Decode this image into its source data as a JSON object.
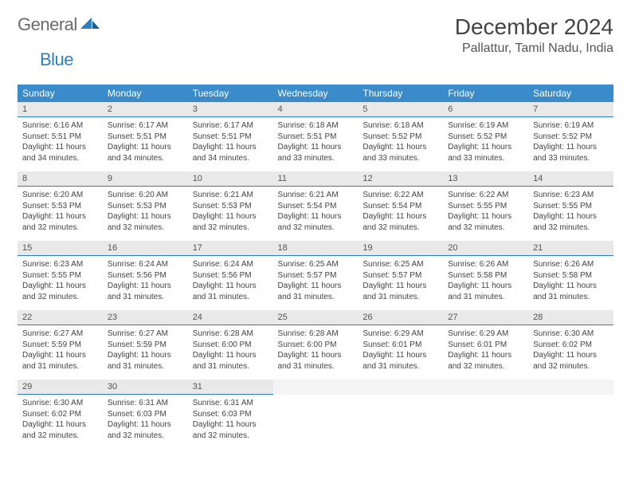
{
  "brand": {
    "name_a": "General",
    "name_b": "Blue"
  },
  "title": "December 2024",
  "location": "Pallattur, Tamil Nadu, India",
  "colors": {
    "header_bg": "#3a8bc9",
    "header_text": "#ffffff",
    "daynum_bg": "#e9e9e9",
    "daynum_border": "#2d7fc1",
    "body_text": "#444444",
    "logo_gray": "#6b6b6b",
    "logo_blue": "#2d7fc1",
    "page_bg": "#ffffff"
  },
  "typography": {
    "month_title_fontsize": 28,
    "location_fontsize": 16,
    "weekday_fontsize": 12,
    "daynum_fontsize": 11,
    "detail_fontsize": 10
  },
  "layout": {
    "columns": 7,
    "rows": 5,
    "cell_width_pct": 14.28
  },
  "weekdays": [
    "Sunday",
    "Monday",
    "Tuesday",
    "Wednesday",
    "Thursday",
    "Friday",
    "Saturday"
  ],
  "weeks": [
    [
      {
        "num": "1",
        "sunrise": "Sunrise: 6:16 AM",
        "sunset": "Sunset: 5:51 PM",
        "daylight": "Daylight: 11 hours and 34 minutes."
      },
      {
        "num": "2",
        "sunrise": "Sunrise: 6:17 AM",
        "sunset": "Sunset: 5:51 PM",
        "daylight": "Daylight: 11 hours and 34 minutes."
      },
      {
        "num": "3",
        "sunrise": "Sunrise: 6:17 AM",
        "sunset": "Sunset: 5:51 PM",
        "daylight": "Daylight: 11 hours and 34 minutes."
      },
      {
        "num": "4",
        "sunrise": "Sunrise: 6:18 AM",
        "sunset": "Sunset: 5:51 PM",
        "daylight": "Daylight: 11 hours and 33 minutes."
      },
      {
        "num": "5",
        "sunrise": "Sunrise: 6:18 AM",
        "sunset": "Sunset: 5:52 PM",
        "daylight": "Daylight: 11 hours and 33 minutes."
      },
      {
        "num": "6",
        "sunrise": "Sunrise: 6:19 AM",
        "sunset": "Sunset: 5:52 PM",
        "daylight": "Daylight: 11 hours and 33 minutes."
      },
      {
        "num": "7",
        "sunrise": "Sunrise: 6:19 AM",
        "sunset": "Sunset: 5:52 PM",
        "daylight": "Daylight: 11 hours and 33 minutes."
      }
    ],
    [
      {
        "num": "8",
        "sunrise": "Sunrise: 6:20 AM",
        "sunset": "Sunset: 5:53 PM",
        "daylight": "Daylight: 11 hours and 32 minutes."
      },
      {
        "num": "9",
        "sunrise": "Sunrise: 6:20 AM",
        "sunset": "Sunset: 5:53 PM",
        "daylight": "Daylight: 11 hours and 32 minutes."
      },
      {
        "num": "10",
        "sunrise": "Sunrise: 6:21 AM",
        "sunset": "Sunset: 5:53 PM",
        "daylight": "Daylight: 11 hours and 32 minutes."
      },
      {
        "num": "11",
        "sunrise": "Sunrise: 6:21 AM",
        "sunset": "Sunset: 5:54 PM",
        "daylight": "Daylight: 11 hours and 32 minutes."
      },
      {
        "num": "12",
        "sunrise": "Sunrise: 6:22 AM",
        "sunset": "Sunset: 5:54 PM",
        "daylight": "Daylight: 11 hours and 32 minutes."
      },
      {
        "num": "13",
        "sunrise": "Sunrise: 6:22 AM",
        "sunset": "Sunset: 5:55 PM",
        "daylight": "Daylight: 11 hours and 32 minutes."
      },
      {
        "num": "14",
        "sunrise": "Sunrise: 6:23 AM",
        "sunset": "Sunset: 5:55 PM",
        "daylight": "Daylight: 11 hours and 32 minutes."
      }
    ],
    [
      {
        "num": "15",
        "sunrise": "Sunrise: 6:23 AM",
        "sunset": "Sunset: 5:55 PM",
        "daylight": "Daylight: 11 hours and 32 minutes."
      },
      {
        "num": "16",
        "sunrise": "Sunrise: 6:24 AM",
        "sunset": "Sunset: 5:56 PM",
        "daylight": "Daylight: 11 hours and 31 minutes."
      },
      {
        "num": "17",
        "sunrise": "Sunrise: 6:24 AM",
        "sunset": "Sunset: 5:56 PM",
        "daylight": "Daylight: 11 hours and 31 minutes."
      },
      {
        "num": "18",
        "sunrise": "Sunrise: 6:25 AM",
        "sunset": "Sunset: 5:57 PM",
        "daylight": "Daylight: 11 hours and 31 minutes."
      },
      {
        "num": "19",
        "sunrise": "Sunrise: 6:25 AM",
        "sunset": "Sunset: 5:57 PM",
        "daylight": "Daylight: 11 hours and 31 minutes."
      },
      {
        "num": "20",
        "sunrise": "Sunrise: 6:26 AM",
        "sunset": "Sunset: 5:58 PM",
        "daylight": "Daylight: 11 hours and 31 minutes."
      },
      {
        "num": "21",
        "sunrise": "Sunrise: 6:26 AM",
        "sunset": "Sunset: 5:58 PM",
        "daylight": "Daylight: 11 hours and 31 minutes."
      }
    ],
    [
      {
        "num": "22",
        "sunrise": "Sunrise: 6:27 AM",
        "sunset": "Sunset: 5:59 PM",
        "daylight": "Daylight: 11 hours and 31 minutes."
      },
      {
        "num": "23",
        "sunrise": "Sunrise: 6:27 AM",
        "sunset": "Sunset: 5:59 PM",
        "daylight": "Daylight: 11 hours and 31 minutes."
      },
      {
        "num": "24",
        "sunrise": "Sunrise: 6:28 AM",
        "sunset": "Sunset: 6:00 PM",
        "daylight": "Daylight: 11 hours and 31 minutes."
      },
      {
        "num": "25",
        "sunrise": "Sunrise: 6:28 AM",
        "sunset": "Sunset: 6:00 PM",
        "daylight": "Daylight: 11 hours and 31 minutes."
      },
      {
        "num": "26",
        "sunrise": "Sunrise: 6:29 AM",
        "sunset": "Sunset: 6:01 PM",
        "daylight": "Daylight: 11 hours and 31 minutes."
      },
      {
        "num": "27",
        "sunrise": "Sunrise: 6:29 AM",
        "sunset": "Sunset: 6:01 PM",
        "daylight": "Daylight: 11 hours and 32 minutes."
      },
      {
        "num": "28",
        "sunrise": "Sunrise: 6:30 AM",
        "sunset": "Sunset: 6:02 PM",
        "daylight": "Daylight: 11 hours and 32 minutes."
      }
    ],
    [
      {
        "num": "29",
        "sunrise": "Sunrise: 6:30 AM",
        "sunset": "Sunset: 6:02 PM",
        "daylight": "Daylight: 11 hours and 32 minutes."
      },
      {
        "num": "30",
        "sunrise": "Sunrise: 6:31 AM",
        "sunset": "Sunset: 6:03 PM",
        "daylight": "Daylight: 11 hours and 32 minutes."
      },
      {
        "num": "31",
        "sunrise": "Sunrise: 6:31 AM",
        "sunset": "Sunset: 6:03 PM",
        "daylight": "Daylight: 11 hours and 32 minutes."
      },
      null,
      null,
      null,
      null
    ]
  ]
}
